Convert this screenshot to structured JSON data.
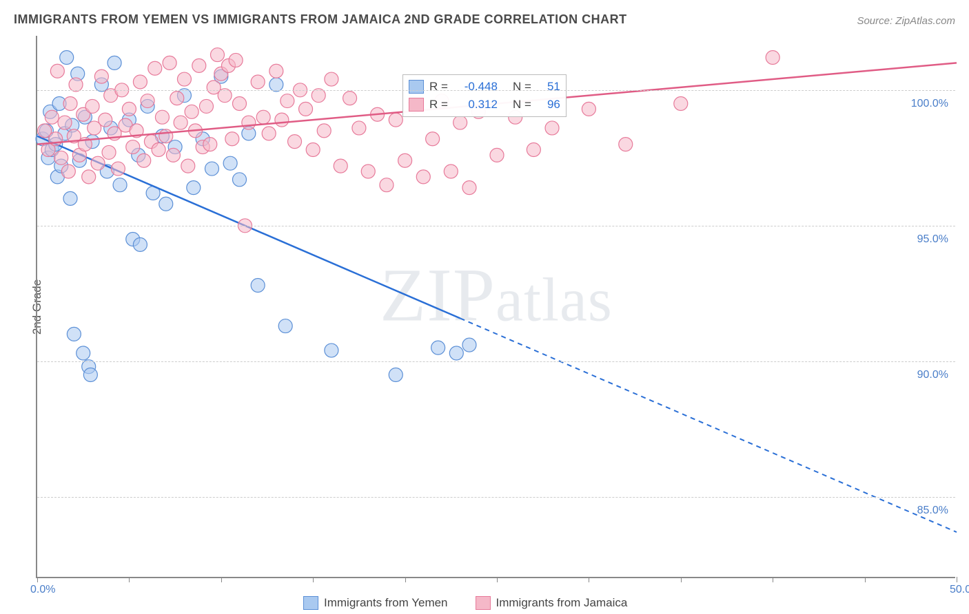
{
  "title": "IMMIGRANTS FROM YEMEN VS IMMIGRANTS FROM JAMAICA 2ND GRADE CORRELATION CHART",
  "source": "Source: ZipAtlas.com",
  "watermark": "ZIPatlas",
  "y_axis_title": "2nd Grade",
  "chart": {
    "type": "scatter-with-regression",
    "background_color": "#ffffff",
    "grid_color": "#cccccc",
    "axis_color": "#888888",
    "xlim": [
      0,
      50
    ],
    "ylim": [
      82,
      102
    ],
    "x_ticks": [
      0,
      5,
      10,
      15,
      20,
      25,
      30,
      35,
      40,
      45,
      50
    ],
    "x_tick_labels": {
      "0": "0.0%",
      "50": "50.0%"
    },
    "y_ticks": [
      85,
      90,
      95,
      100
    ],
    "y_tick_labels": {
      "85": "85.0%",
      "90": "90.0%",
      "95": "95.0%",
      "100": "100.0%"
    },
    "marker_radius": 10,
    "marker_opacity": 0.55,
    "line_width": 2.5,
    "series": [
      {
        "name": "Immigrants from Yemen",
        "color_fill": "#a9c9f0",
        "color_stroke": "#5b8fd6",
        "line_color": "#2a6fd6",
        "R": "-0.448",
        "N": "51",
        "regression": {
          "x1": 0,
          "y1": 98.3,
          "x2": 50,
          "y2": 83.7,
          "solid_until_x": 23
        },
        "points": [
          [
            0.3,
            98.2
          ],
          [
            0.5,
            98.5
          ],
          [
            0.6,
            97.5
          ],
          [
            0.7,
            99.2
          ],
          [
            0.8,
            97.8
          ],
          [
            1.0,
            98.0
          ],
          [
            1.1,
            96.8
          ],
          [
            1.2,
            99.5
          ],
          [
            1.3,
            97.2
          ],
          [
            1.5,
            98.4
          ],
          [
            1.6,
            101.2
          ],
          [
            1.8,
            96.0
          ],
          [
            1.9,
            98.7
          ],
          [
            2.0,
            91.0
          ],
          [
            2.2,
            100.6
          ],
          [
            2.3,
            97.4
          ],
          [
            2.5,
            90.3
          ],
          [
            2.6,
            99.0
          ],
          [
            2.8,
            89.8
          ],
          [
            2.9,
            89.5
          ],
          [
            3.0,
            98.1
          ],
          [
            3.5,
            100.2
          ],
          [
            3.8,
            97.0
          ],
          [
            4.0,
            98.6
          ],
          [
            4.2,
            101.0
          ],
          [
            4.5,
            96.5
          ],
          [
            5.0,
            98.9
          ],
          [
            5.2,
            94.5
          ],
          [
            5.5,
            97.6
          ],
          [
            5.6,
            94.3
          ],
          [
            6.0,
            99.4
          ],
          [
            6.3,
            96.2
          ],
          [
            6.8,
            98.3
          ],
          [
            7.0,
            95.8
          ],
          [
            7.5,
            97.9
          ],
          [
            8.0,
            99.8
          ],
          [
            8.5,
            96.4
          ],
          [
            9.0,
            98.2
          ],
          [
            9.5,
            97.1
          ],
          [
            10.0,
            100.5
          ],
          [
            10.5,
            97.3
          ],
          [
            11.0,
            96.7
          ],
          [
            11.5,
            98.4
          ],
          [
            12.0,
            92.8
          ],
          [
            13.0,
            100.2
          ],
          [
            13.5,
            91.3
          ],
          [
            16.0,
            90.4
          ],
          [
            19.5,
            89.5
          ],
          [
            21.8,
            90.5
          ],
          [
            22.8,
            90.3
          ],
          [
            23.5,
            90.6
          ]
        ]
      },
      {
        "name": "Immigrants from Jamaica",
        "color_fill": "#f5b8c8",
        "color_stroke": "#e77a9a",
        "line_color": "#e05c85",
        "R": "0.312",
        "N": "96",
        "regression": {
          "x1": 0,
          "y1": 98.0,
          "x2": 50,
          "y2": 101.0,
          "solid_until_x": 50
        },
        "points": [
          [
            0.4,
            98.5
          ],
          [
            0.6,
            97.8
          ],
          [
            0.8,
            99.0
          ],
          [
            1.0,
            98.2
          ],
          [
            1.1,
            100.7
          ],
          [
            1.3,
            97.5
          ],
          [
            1.5,
            98.8
          ],
          [
            1.7,
            97.0
          ],
          [
            1.8,
            99.5
          ],
          [
            2.0,
            98.3
          ],
          [
            2.1,
            100.2
          ],
          [
            2.3,
            97.6
          ],
          [
            2.5,
            99.1
          ],
          [
            2.6,
            98.0
          ],
          [
            2.8,
            96.8
          ],
          [
            3.0,
            99.4
          ],
          [
            3.1,
            98.6
          ],
          [
            3.3,
            97.3
          ],
          [
            3.5,
            100.5
          ],
          [
            3.7,
            98.9
          ],
          [
            3.9,
            97.7
          ],
          [
            4.0,
            99.8
          ],
          [
            4.2,
            98.4
          ],
          [
            4.4,
            97.1
          ],
          [
            4.6,
            100.0
          ],
          [
            4.8,
            98.7
          ],
          [
            5.0,
            99.3
          ],
          [
            5.2,
            97.9
          ],
          [
            5.4,
            98.5
          ],
          [
            5.6,
            100.3
          ],
          [
            5.8,
            97.4
          ],
          [
            6.0,
            99.6
          ],
          [
            6.2,
            98.1
          ],
          [
            6.4,
            100.8
          ],
          [
            6.6,
            97.8
          ],
          [
            6.8,
            99.0
          ],
          [
            7.0,
            98.3
          ],
          [
            7.2,
            101.0
          ],
          [
            7.4,
            97.6
          ],
          [
            7.6,
            99.7
          ],
          [
            7.8,
            98.8
          ],
          [
            8.0,
            100.4
          ],
          [
            8.2,
            97.2
          ],
          [
            8.4,
            99.2
          ],
          [
            8.6,
            98.5
          ],
          [
            8.8,
            100.9
          ],
          [
            9.0,
            97.9
          ],
          [
            9.2,
            99.4
          ],
          [
            9.4,
            98.0
          ],
          [
            9.6,
            100.1
          ],
          [
            9.8,
            101.3
          ],
          [
            10.0,
            100.6
          ],
          [
            10.2,
            99.8
          ],
          [
            10.4,
            100.9
          ],
          [
            10.6,
            98.2
          ],
          [
            10.8,
            101.1
          ],
          [
            11.0,
            99.5
          ],
          [
            11.3,
            95.0
          ],
          [
            11.5,
            98.8
          ],
          [
            12.0,
            100.3
          ],
          [
            12.3,
            99.0
          ],
          [
            12.6,
            98.4
          ],
          [
            13.0,
            100.7
          ],
          [
            13.3,
            98.9
          ],
          [
            13.6,
            99.6
          ],
          [
            14.0,
            98.1
          ],
          [
            14.3,
            100.0
          ],
          [
            14.6,
            99.3
          ],
          [
            15.0,
            97.8
          ],
          [
            15.3,
            99.8
          ],
          [
            15.6,
            98.5
          ],
          [
            16.0,
            100.4
          ],
          [
            16.5,
            97.2
          ],
          [
            17.0,
            99.7
          ],
          [
            17.5,
            98.6
          ],
          [
            18.0,
            97.0
          ],
          [
            18.5,
            99.1
          ],
          [
            19.0,
            96.5
          ],
          [
            19.5,
            98.9
          ],
          [
            20.0,
            97.4
          ],
          [
            20.5,
            99.4
          ],
          [
            21.0,
            96.8
          ],
          [
            21.5,
            98.2
          ],
          [
            22.0,
            99.6
          ],
          [
            22.5,
            97.0
          ],
          [
            23.0,
            98.8
          ],
          [
            23.5,
            96.4
          ],
          [
            24.0,
            99.2
          ],
          [
            25.0,
            97.6
          ],
          [
            26.0,
            99.0
          ],
          [
            27.0,
            97.8
          ],
          [
            28.0,
            98.6
          ],
          [
            30.0,
            99.3
          ],
          [
            32.0,
            98.0
          ],
          [
            35.0,
            99.5
          ],
          [
            40.0,
            101.2
          ]
        ]
      }
    ],
    "bottom_legend": [
      {
        "label": "Immigrants from Yemen",
        "fill": "#a9c9f0",
        "stroke": "#5b8fd6"
      },
      {
        "label": "Immigrants from Jamaica",
        "fill": "#f5b8c8",
        "stroke": "#e77a9a"
      }
    ]
  }
}
